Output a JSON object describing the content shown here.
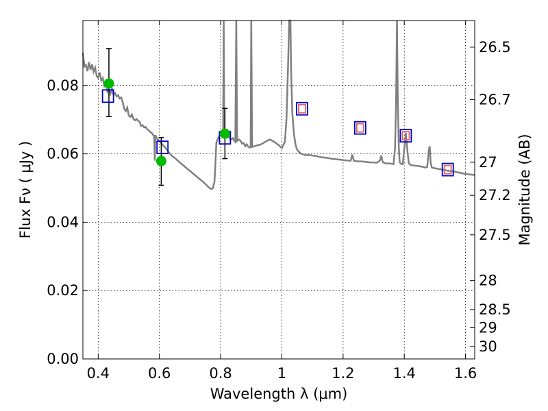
{
  "chart_data": {
    "type": "scatter",
    "xlabel": "Wavelength  λ (μm)",
    "ylabel": "Flux  Fν  ( μJy )",
    "y2label": "Magnitude (AB)",
    "xlim": [
      0.35,
      1.63
    ],
    "ylim": [
      0.0,
      0.099
    ],
    "grid": true,
    "x_ticks": [
      "0.4",
      "0.6",
      "0.8",
      "1",
      "1.2",
      "1.4",
      "1.6"
    ],
    "x_tick_values": [
      0.4,
      0.6,
      0.8,
      1.0,
      1.2,
      1.4,
      1.6
    ],
    "y_ticks": [
      "0.00",
      "0.02",
      "0.04",
      "0.06",
      "0.08"
    ],
    "y_tick_values": [
      0.0,
      0.02,
      0.04,
      0.06,
      0.08
    ],
    "mag_ticks": [
      "26.5",
      "26.7",
      "27",
      "27.2",
      "27.5",
      "28",
      "28.5",
      "29",
      "30"
    ],
    "mag_tick_values": [
      26.5,
      26.7,
      27.0,
      27.2,
      27.5,
      28.0,
      28.5,
      29.0,
      30.0
    ],
    "colors": {
      "model": "#808080",
      "observed": "#00bb00",
      "model_photometry": "#0000cc",
      "predicted": "#e06060",
      "errorbar": "#000000"
    },
    "series": [
      {
        "kind": "line",
        "points": [
          [
            0.35,
            0.0896
          ],
          [
            0.355,
            0.0855
          ],
          [
            0.36,
            0.086
          ],
          [
            0.365,
            0.0842
          ],
          [
            0.37,
            0.0868
          ],
          [
            0.375,
            0.0846
          ],
          [
            0.38,
            0.0862
          ],
          [
            0.385,
            0.084
          ],
          [
            0.39,
            0.0852
          ],
          [
            0.395,
            0.0828
          ],
          [
            0.4,
            0.0822
          ],
          [
            0.405,
            0.0838
          ],
          [
            0.41,
            0.0815
          ],
          [
            0.415,
            0.0822
          ],
          [
            0.42,
            0.0798
          ],
          [
            0.425,
            0.0805
          ],
          [
            0.43,
            0.0782
          ],
          [
            0.435,
            0.0788
          ],
          [
            0.44,
            0.0776
          ],
          [
            0.445,
            0.0792
          ],
          [
            0.45,
            0.0772
          ],
          [
            0.455,
            0.0778
          ],
          [
            0.46,
            0.0768
          ],
          [
            0.465,
            0.0772
          ],
          [
            0.47,
            0.0762
          ],
          [
            0.475,
            0.0765
          ],
          [
            0.48,
            0.0752
          ],
          [
            0.485,
            0.0732
          ],
          [
            0.49,
            0.0725
          ],
          [
            0.495,
            0.0735
          ],
          [
            0.5,
            0.0712
          ],
          [
            0.505,
            0.0708
          ],
          [
            0.51,
            0.0715
          ],
          [
            0.515,
            0.0702
          ],
          [
            0.52,
            0.0698
          ],
          [
            0.525,
            0.0702
          ],
          [
            0.53,
            0.0697
          ],
          [
            0.535,
            0.0694
          ],
          [
            0.54,
            0.0682
          ],
          [
            0.545,
            0.0684
          ],
          [
            0.55,
            0.0677
          ],
          [
            0.555,
            0.0679
          ],
          [
            0.56,
            0.0672
          ],
          [
            0.565,
            0.0669
          ],
          [
            0.57,
            0.0664
          ],
          [
            0.575,
            0.0661
          ],
          [
            0.58,
            0.0655
          ],
          [
            0.583,
            0.0652
          ],
          [
            0.585,
            0.058
          ],
          [
            0.587,
            0.0655
          ],
          [
            0.59,
            0.0647
          ],
          [
            0.6,
            0.0637
          ],
          [
            0.61,
            0.0627
          ],
          [
            0.62,
            0.0617
          ],
          [
            0.63,
            0.0605
          ],
          [
            0.64,
            0.0595
          ],
          [
            0.65,
            0.0588
          ],
          [
            0.66,
            0.058
          ],
          [
            0.67,
            0.0572
          ],
          [
            0.68,
            0.0565
          ],
          [
            0.69,
            0.0557
          ],
          [
            0.7,
            0.055
          ],
          [
            0.71,
            0.0542
          ],
          [
            0.72,
            0.0535
          ],
          [
            0.73,
            0.0527
          ],
          [
            0.74,
            0.052
          ],
          [
            0.75,
            0.0512
          ],
          [
            0.76,
            0.0503
          ],
          [
            0.77,
            0.0497
          ],
          [
            0.775,
            0.05
          ],
          [
            0.78,
            0.052
          ],
          [
            0.783,
            0.0572
          ],
          [
            0.786,
            0.0632
          ],
          [
            0.79,
            0.0642
          ],
          [
            0.795,
            0.0652
          ],
          [
            0.8,
            0.0658
          ],
          [
            0.805,
            0.0656
          ],
          [
            0.808,
            0.0655
          ],
          [
            0.81,
            0.099
          ],
          [
            0.812,
            0.0655
          ],
          [
            0.815,
            0.0652
          ],
          [
            0.82,
            0.0648
          ],
          [
            0.825,
            0.0652
          ],
          [
            0.83,
            0.0646
          ],
          [
            0.835,
            0.0642
          ],
          [
            0.84,
            0.0646
          ],
          [
            0.845,
            0.0638
          ],
          [
            0.848,
            0.0635
          ],
          [
            0.851,
            0.099
          ],
          [
            0.854,
            0.0638
          ],
          [
            0.86,
            0.0642
          ],
          [
            0.865,
            0.0638
          ],
          [
            0.87,
            0.063
          ],
          [
            0.875,
            0.0632
          ],
          [
            0.88,
            0.0622
          ],
          [
            0.885,
            0.0628
          ],
          [
            0.89,
            0.0621
          ],
          [
            0.895,
            0.0618
          ],
          [
            0.898,
            0.062
          ],
          [
            0.9,
            0.099
          ],
          [
            0.903,
            0.062
          ],
          [
            0.91,
            0.0622
          ],
          [
            0.92,
            0.0625
          ],
          [
            0.93,
            0.0627
          ],
          [
            0.94,
            0.0632
          ],
          [
            0.95,
            0.0637
          ],
          [
            0.96,
            0.0642
          ],
          [
            0.97,
            0.0638
          ],
          [
            0.98,
            0.0632
          ],
          [
            0.99,
            0.0625
          ],
          [
            1.0,
            0.0617
          ],
          [
            1.01,
            0.0635
          ],
          [
            1.015,
            0.0702
          ],
          [
            1.02,
            0.0848
          ],
          [
            1.024,
            0.099
          ],
          [
            1.028,
            0.099
          ],
          [
            1.03,
            0.085
          ],
          [
            1.034,
            0.072
          ],
          [
            1.04,
            0.0655
          ],
          [
            1.045,
            0.0625
          ],
          [
            1.05,
            0.0612
          ],
          [
            1.06,
            0.0602
          ],
          [
            1.07,
            0.0598
          ],
          [
            1.08,
            0.0596
          ],
          [
            1.09,
            0.0597
          ],
          [
            1.1,
            0.0595
          ],
          [
            1.11,
            0.0594
          ],
          [
            1.12,
            0.0592
          ],
          [
            1.13,
            0.059
          ],
          [
            1.14,
            0.0589
          ],
          [
            1.15,
            0.0588
          ],
          [
            1.16,
            0.0586
          ],
          [
            1.17,
            0.0585
          ],
          [
            1.18,
            0.0584
          ],
          [
            1.19,
            0.0583
          ],
          [
            1.2,
            0.0582
          ],
          [
            1.21,
            0.0581
          ],
          [
            1.22,
            0.058
          ],
          [
            1.225,
            0.058
          ],
          [
            1.23,
            0.0598
          ],
          [
            1.235,
            0.058
          ],
          [
            1.24,
            0.0579
          ],
          [
            1.25,
            0.0578
          ],
          [
            1.26,
            0.0578
          ],
          [
            1.27,
            0.0577
          ],
          [
            1.28,
            0.0576
          ],
          [
            1.29,
            0.0575
          ],
          [
            1.3,
            0.0575
          ],
          [
            1.31,
            0.0574
          ],
          [
            1.32,
            0.058
          ],
          [
            1.325,
            0.0595
          ],
          [
            1.33,
            0.0575
          ],
          [
            1.34,
            0.0572
          ],
          [
            1.35,
            0.0572
          ],
          [
            1.36,
            0.0571
          ],
          [
            1.365,
            0.057
          ],
          [
            1.37,
            0.062
          ],
          [
            1.373,
            0.075
          ],
          [
            1.376,
            0.099
          ],
          [
            1.379,
            0.075
          ],
          [
            1.382,
            0.062
          ],
          [
            1.385,
            0.0575
          ],
          [
            1.39,
            0.057
          ],
          [
            1.395,
            0.057
          ],
          [
            1.4,
            0.0615
          ],
          [
            1.405,
            0.0662
          ],
          [
            1.41,
            0.061
          ],
          [
            1.415,
            0.0572
          ],
          [
            1.42,
            0.0568
          ],
          [
            1.43,
            0.0566
          ],
          [
            1.44,
            0.0565
          ],
          [
            1.45,
            0.0564
          ],
          [
            1.46,
            0.0562
          ],
          [
            1.47,
            0.056
          ],
          [
            1.475,
            0.0562
          ],
          [
            1.48,
            0.0612
          ],
          [
            1.483,
            0.0622
          ],
          [
            1.486,
            0.0575
          ],
          [
            1.49,
            0.056
          ],
          [
            1.5,
            0.0558
          ],
          [
            1.51,
            0.0556
          ],
          [
            1.52,
            0.0555
          ],
          [
            1.53,
            0.0553
          ],
          [
            1.54,
            0.0551
          ],
          [
            1.55,
            0.055
          ],
          [
            1.56,
            0.0549
          ],
          [
            1.57,
            0.0547
          ],
          [
            1.58,
            0.0545
          ],
          [
            1.59,
            0.0543
          ],
          [
            1.6,
            0.0541
          ],
          [
            1.61,
            0.054
          ],
          [
            1.62,
            0.0539
          ],
          [
            1.63,
            0.0538
          ]
        ]
      },
      {
        "kind": "observed",
        "points": [
          {
            "x": 0.435,
            "y": 0.0806,
            "yerr_low": 0.0709,
            "yerr_high": 0.0908
          },
          {
            "x": 0.606,
            "y": 0.0579,
            "yerr_low": 0.0508,
            "yerr_high": 0.0648
          },
          {
            "x": 0.814,
            "y": 0.0659,
            "yerr_low": 0.0586,
            "yerr_high": 0.0733
          }
        ]
      },
      {
        "kind": "model_photometry",
        "points": [
          [
            0.432,
            0.0769
          ],
          [
            0.61,
            0.0619
          ],
          [
            0.814,
            0.0647
          ],
          [
            1.066,
            0.0732
          ],
          [
            1.256,
            0.0676
          ],
          [
            1.405,
            0.0653
          ],
          [
            1.542,
            0.0554
          ]
        ]
      },
      {
        "kind": "predicted",
        "points": [
          [
            1.066,
            0.0732
          ],
          [
            1.256,
            0.0676
          ],
          [
            1.405,
            0.0653
          ],
          [
            1.542,
            0.0554
          ]
        ]
      }
    ]
  }
}
